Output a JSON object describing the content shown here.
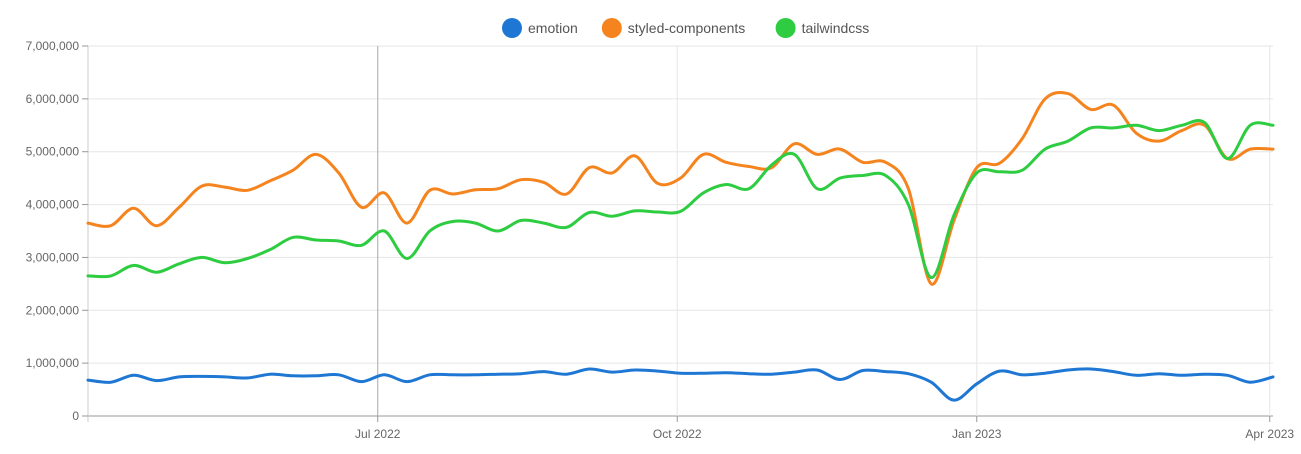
{
  "chart_data": {
    "type": "line",
    "title": "",
    "xlabel": "",
    "ylabel": "",
    "ylim": [
      0,
      7000000
    ],
    "yticks": [
      0,
      1000000,
      2000000,
      3000000,
      4000000,
      5000000,
      6000000,
      7000000
    ],
    "ytick_labels": [
      "0",
      "1,000,000",
      "2,000,000",
      "3,000,000",
      "4,000,000",
      "5,000,000",
      "6,000,000",
      "7,000,000"
    ],
    "x_start_date": "2022-04-03",
    "x_end_date": "2023-04-02",
    "x": [
      "2022-04-03",
      "2022-04-10",
      "2022-04-17",
      "2022-04-24",
      "2022-05-01",
      "2022-05-08",
      "2022-05-15",
      "2022-05-22",
      "2022-05-29",
      "2022-06-05",
      "2022-06-12",
      "2022-06-19",
      "2022-06-26",
      "2022-07-03",
      "2022-07-10",
      "2022-07-17",
      "2022-07-24",
      "2022-07-31",
      "2022-08-07",
      "2022-08-14",
      "2022-08-21",
      "2022-08-28",
      "2022-09-04",
      "2022-09-11",
      "2022-09-18",
      "2022-09-25",
      "2022-10-02",
      "2022-10-09",
      "2022-10-16",
      "2022-10-23",
      "2022-10-30",
      "2022-11-06",
      "2022-11-13",
      "2022-11-20",
      "2022-11-27",
      "2022-12-04",
      "2022-12-11",
      "2022-12-18",
      "2022-12-25",
      "2023-01-01",
      "2023-01-08",
      "2023-01-15",
      "2023-01-22",
      "2023-01-29",
      "2023-02-05",
      "2023-02-12",
      "2023-02-19",
      "2023-02-26",
      "2023-03-05",
      "2023-03-12",
      "2023-03-19",
      "2023-03-26",
      "2023-04-02"
    ],
    "xticks": [
      "2022-07-01",
      "2022-10-01",
      "2023-01-01",
      "2023-04-01"
    ],
    "xtick_labels": [
      "Jul 2022",
      "Oct 2022",
      "Jan 2023",
      "Apr 2023"
    ],
    "grid": true,
    "legend": "top-center",
    "series": [
      {
        "name": "emotion",
        "color": "#1f77d4",
        "values": [
          680000,
          640000,
          770000,
          670000,
          740000,
          750000,
          740000,
          720000,
          790000,
          760000,
          760000,
          780000,
          650000,
          780000,
          650000,
          780000,
          780000,
          780000,
          790000,
          800000,
          840000,
          790000,
          890000,
          830000,
          870000,
          850000,
          810000,
          810000,
          820000,
          800000,
          790000,
          830000,
          870000,
          690000,
          860000,
          840000,
          800000,
          640000,
          300000,
          610000,
          850000,
          780000,
          810000,
          870000,
          890000,
          840000,
          770000,
          800000,
          770000,
          790000,
          770000,
          640000,
          740000
        ]
      },
      {
        "name": "styled-components",
        "color": "#f5841f",
        "values": [
          3650000,
          3600000,
          3930000,
          3600000,
          3950000,
          4350000,
          4330000,
          4270000,
          4450000,
          4650000,
          4950000,
          4600000,
          3950000,
          4220000,
          3650000,
          4270000,
          4200000,
          4280000,
          4300000,
          4470000,
          4420000,
          4200000,
          4700000,
          4600000,
          4920000,
          4400000,
          4500000,
          4950000,
          4800000,
          4720000,
          4700000,
          5150000,
          4950000,
          5050000,
          4800000,
          4800000,
          4300000,
          2500000,
          3700000,
          4700000,
          4780000,
          5250000,
          6000000,
          6100000,
          5800000,
          5880000,
          5350000,
          5200000,
          5400000,
          5500000,
          4870000,
          5050000,
          5050000
        ]
      },
      {
        "name": "tailwindcss",
        "color": "#2ecc40",
        "values": [
          2650000,
          2650000,
          2850000,
          2720000,
          2880000,
          3000000,
          2900000,
          2980000,
          3150000,
          3380000,
          3330000,
          3310000,
          3230000,
          3500000,
          2980000,
          3500000,
          3680000,
          3650000,
          3500000,
          3700000,
          3650000,
          3570000,
          3850000,
          3780000,
          3880000,
          3860000,
          3870000,
          4220000,
          4380000,
          4300000,
          4750000,
          4950000,
          4300000,
          4500000,
          4550000,
          4550000,
          4000000,
          2620000,
          3800000,
          4600000,
          4620000,
          4650000,
          5050000,
          5200000,
          5450000,
          5450000,
          5500000,
          5400000,
          5500000,
          5550000,
          4870000,
          5500000,
          5500000
        ]
      }
    ]
  }
}
